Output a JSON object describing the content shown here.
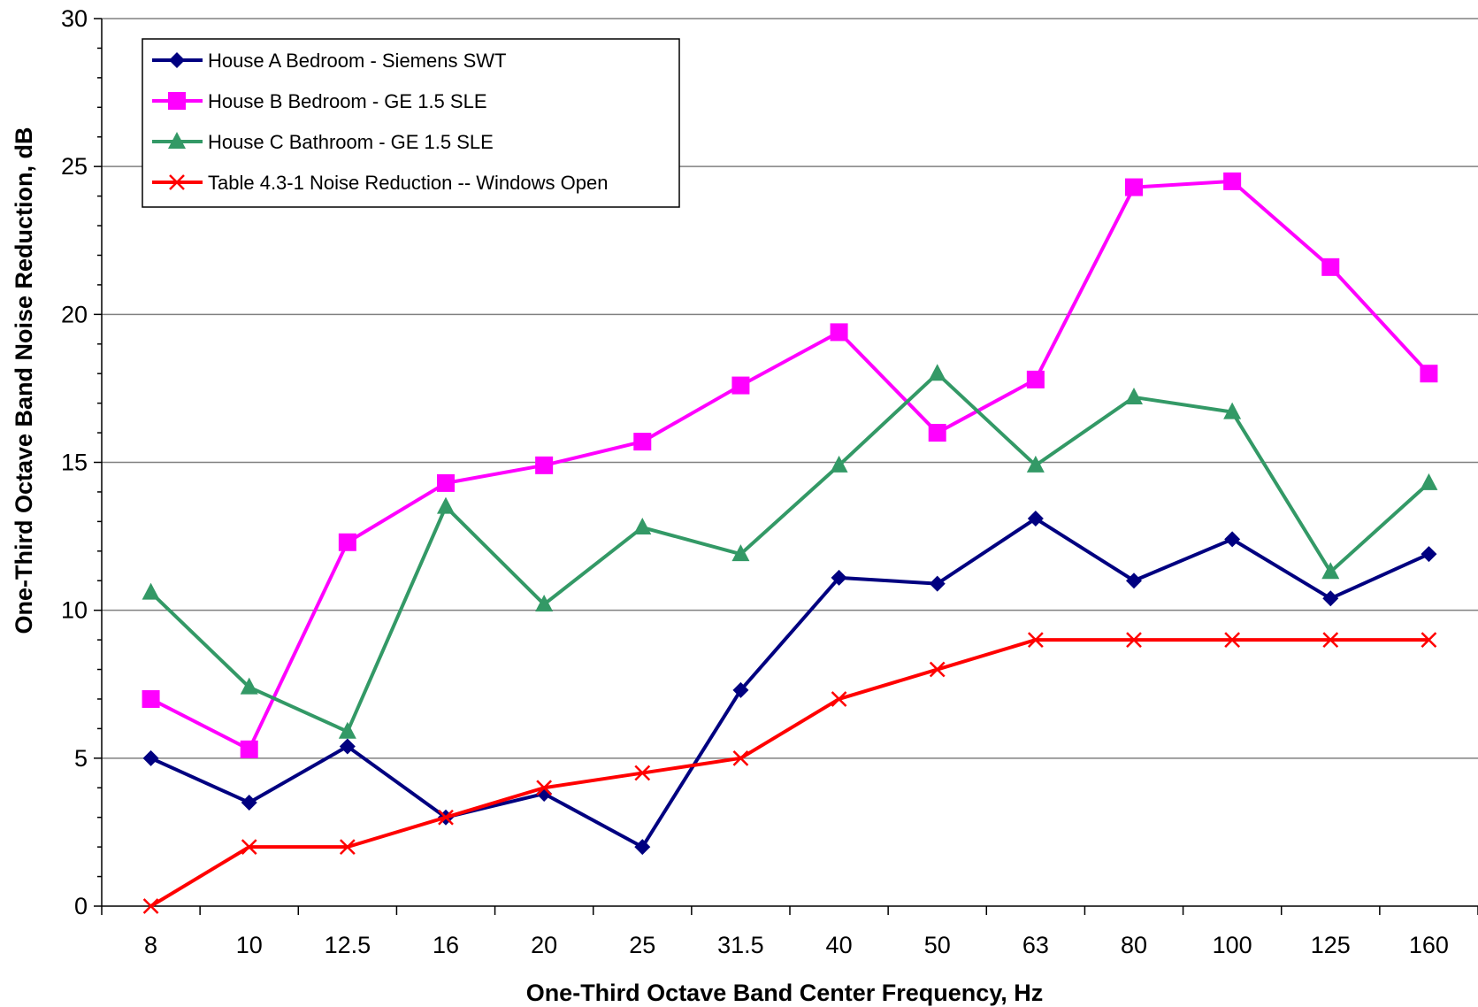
{
  "chart_data": {
    "type": "line",
    "title": "",
    "xlabel": "One-Third Octave Band Center Frequency, Hz",
    "ylabel": "One-Third Octave Band Noise Reduction, dB",
    "categories": [
      "8",
      "10",
      "12.5",
      "16",
      "20",
      "25",
      "31.5",
      "40",
      "50",
      "63",
      "80",
      "100",
      "125",
      "160"
    ],
    "ylim": [
      0,
      30
    ],
    "yticks": [
      0,
      5,
      10,
      15,
      20,
      25,
      30
    ],
    "grid": "horizontal major lines",
    "legend_position": "top-left",
    "series": [
      {
        "name": "House A Bedroom - Siemens SWT",
        "color": "#000080",
        "marker": "diamond",
        "values": [
          5.0,
          3.5,
          5.4,
          3.0,
          3.8,
          2.0,
          7.3,
          11.1,
          10.9,
          13.1,
          11.0,
          12.4,
          10.4,
          11.9
        ]
      },
      {
        "name": "House B Bedroom - GE 1.5 SLE",
        "color": "#FF00FF",
        "marker": "square",
        "values": [
          7.0,
          5.3,
          12.3,
          14.3,
          14.9,
          15.7,
          17.6,
          19.4,
          16.0,
          17.8,
          24.3,
          24.5,
          21.6,
          18.0
        ]
      },
      {
        "name": "House C Bathroom - GE 1.5 SLE",
        "color": "#339966",
        "marker": "triangle",
        "values": [
          10.6,
          7.4,
          5.9,
          13.5,
          10.2,
          12.8,
          11.9,
          14.9,
          18.0,
          14.9,
          17.2,
          16.7,
          11.3,
          14.3
        ]
      },
      {
        "name": "Table 4.3-1 Noise Reduction -- Windows Open",
        "color": "#FF0000",
        "marker": "x",
        "values": [
          0,
          2,
          2,
          3,
          4,
          4.5,
          5,
          7,
          8,
          9,
          9,
          9,
          9,
          9
        ]
      }
    ]
  }
}
